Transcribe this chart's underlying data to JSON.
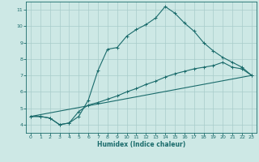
{
  "xlabel": "Humidex (Indice chaleur)",
  "bg_color": "#cde8e5",
  "grid_color": "#a8ccca",
  "line_color": "#1a6b6b",
  "xlim": [
    -0.5,
    23.5
  ],
  "ylim": [
    3.5,
    11.5
  ],
  "xticks": [
    0,
    1,
    2,
    3,
    4,
    5,
    6,
    7,
    8,
    9,
    10,
    11,
    12,
    13,
    14,
    15,
    16,
    17,
    18,
    19,
    20,
    21,
    22,
    23
  ],
  "yticks": [
    4,
    5,
    6,
    7,
    8,
    9,
    10,
    11
  ],
  "line1_x": [
    0,
    1,
    2,
    3,
    4,
    5,
    6,
    7,
    8,
    9,
    10,
    11,
    12,
    13,
    14,
    15,
    16,
    17,
    18,
    19,
    20,
    21,
    22,
    23
  ],
  "line1_y": [
    4.5,
    4.5,
    4.4,
    4.0,
    4.1,
    4.5,
    5.5,
    7.3,
    8.6,
    8.7,
    9.4,
    9.8,
    10.1,
    10.5,
    11.2,
    10.8,
    10.2,
    9.7,
    9.0,
    8.5,
    8.1,
    7.8,
    7.5,
    7.0
  ],
  "line2_x": [
    0,
    1,
    2,
    3,
    4,
    5,
    6,
    7,
    8,
    9,
    10,
    11,
    12,
    13,
    14,
    15,
    16,
    17,
    18,
    19,
    20,
    21,
    22,
    23
  ],
  "line2_y": [
    4.5,
    4.5,
    4.4,
    4.0,
    4.1,
    4.8,
    5.2,
    5.35,
    5.55,
    5.75,
    6.0,
    6.2,
    6.45,
    6.65,
    6.9,
    7.1,
    7.25,
    7.4,
    7.5,
    7.6,
    7.8,
    7.5,
    7.4,
    7.0
  ],
  "line3_x": [
    0,
    23
  ],
  "line3_y": [
    4.5,
    7.0
  ]
}
